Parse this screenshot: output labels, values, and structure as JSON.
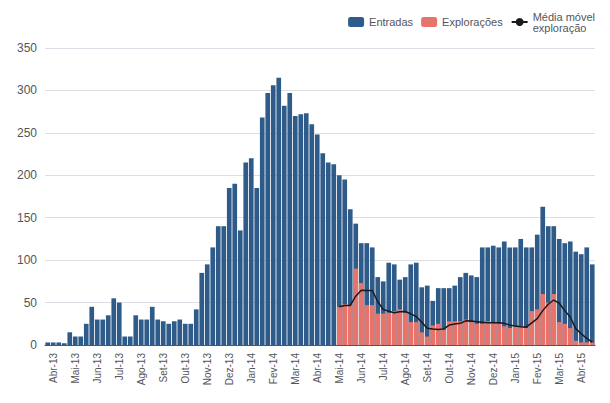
{
  "chart_data": {
    "type": "bar",
    "categories": [
      null,
      "Abr-13",
      null,
      null,
      null,
      "Mai-13",
      null,
      null,
      null,
      "Jun-13",
      null,
      null,
      null,
      "Jul-13",
      null,
      null,
      null,
      "Ago-13",
      null,
      null,
      null,
      "Set-13",
      null,
      null,
      null,
      "Out-13",
      null,
      null,
      null,
      "Nov-13",
      null,
      null,
      null,
      "Dez-13",
      null,
      null,
      null,
      "Jan-14",
      null,
      null,
      null,
      "Fev-14",
      null,
      null,
      null,
      "Mar-14",
      null,
      null,
      null,
      "Abr-14",
      null,
      null,
      null,
      "Mai-14",
      null,
      null,
      null,
      "Jun-14",
      null,
      null,
      null,
      "Jul-14",
      null,
      null,
      null,
      "Ago-14",
      null,
      null,
      null,
      "Set-14",
      null,
      null,
      null,
      "Out-14",
      null,
      null,
      null,
      "Nov-14",
      null,
      null,
      null,
      "Dez-14",
      null,
      null,
      null,
      "Jan-15",
      null,
      null,
      null,
      "Fev-15",
      null,
      null,
      null,
      "Mar-15",
      null,
      null,
      null,
      "Abr-15",
      null,
      null
    ],
    "series": [
      {
        "name": "Entradas",
        "type": "bar",
        "color": "#2E5B8A",
        "values": [
          3,
          3,
          3,
          2,
          15,
          10,
          10,
          25,
          45,
          30,
          30,
          35,
          55,
          50,
          10,
          10,
          35,
          30,
          30,
          45,
          30,
          28,
          25,
          28,
          30,
          25,
          25,
          42,
          85,
          95,
          115,
          140,
          140,
          185,
          190,
          135,
          215,
          220,
          185,
          268,
          297,
          306,
          315,
          282,
          297,
          270,
          272,
          273,
          260,
          248,
          226,
          215,
          213,
          200,
          195,
          160,
          143,
          120,
          120,
          115,
          80,
          75,
          97,
          95,
          77,
          80,
          95,
          97,
          68,
          70,
          52,
          67,
          67,
          67,
          70,
          80,
          85,
          82,
          80,
          115,
          115,
          117,
          115,
          122,
          115,
          115,
          125,
          115,
          115,
          130,
          163,
          140,
          140,
          125,
          120,
          122,
          110,
          107,
          115,
          95
        ]
      },
      {
        "name": "Explorações",
        "type": "bar",
        "color": "#E8736A",
        "values": [
          0,
          0,
          0,
          0,
          0,
          0,
          0,
          0,
          0,
          0,
          0,
          0,
          0,
          0,
          0,
          0,
          0,
          0,
          0,
          0,
          0,
          0,
          0,
          0,
          0,
          0,
          0,
          0,
          0,
          0,
          0,
          0,
          0,
          0,
          0,
          0,
          0,
          0,
          0,
          0,
          0,
          0,
          0,
          0,
          0,
          0,
          0,
          0,
          0,
          0,
          0,
          0,
          0,
          45,
          48,
          47,
          90,
          73,
          47,
          47,
          37,
          37,
          38,
          40,
          42,
          38,
          27,
          27,
          15,
          10,
          23,
          25,
          18,
          28,
          28,
          28,
          30,
          27,
          25,
          25,
          28,
          27,
          25,
          22,
          20,
          22,
          22,
          20,
          40,
          42,
          60,
          50,
          60,
          27,
          25,
          20,
          5,
          3,
          3,
          3
        ]
      },
      {
        "name": "Média móvel\nexploração",
        "type": "line",
        "color": "#1a1a1a",
        "values": [
          null,
          null,
          null,
          null,
          null,
          null,
          null,
          null,
          null,
          null,
          null,
          null,
          null,
          null,
          null,
          null,
          null,
          null,
          null,
          null,
          null,
          null,
          null,
          null,
          null,
          null,
          null,
          null,
          null,
          null,
          null,
          null,
          null,
          null,
          null,
          null,
          null,
          null,
          null,
          null,
          null,
          null,
          null,
          null,
          null,
          null,
          null,
          null,
          null,
          null,
          null,
          null,
          null,
          45,
          46.5,
          46.666666666666664,
          57.5,
          64.5,
          64.25,
          64.25,
          51,
          42,
          39.75,
          38,
          39.25,
          39.5,
          36.75,
          33.5,
          26.75,
          19.75,
          18.75,
          18.25,
          19,
          23.5,
          24.75,
          25.5,
          28.5,
          28.25,
          27.5,
          26.75,
          26.25,
          26.25,
          26.25,
          25.5,
          23.5,
          22.25,
          21.5,
          21,
          26,
          31,
          40.5,
          48,
          53,
          49.25,
          40.5,
          33,
          19.25,
          13.25,
          7.75,
          3.5
        ]
      }
    ],
    "ylim": [
      0,
      350
    ],
    "yticks": [
      0,
      50,
      100,
      150,
      200,
      250,
      300,
      350
    ],
    "grid": true,
    "legend": "upper right"
  }
}
